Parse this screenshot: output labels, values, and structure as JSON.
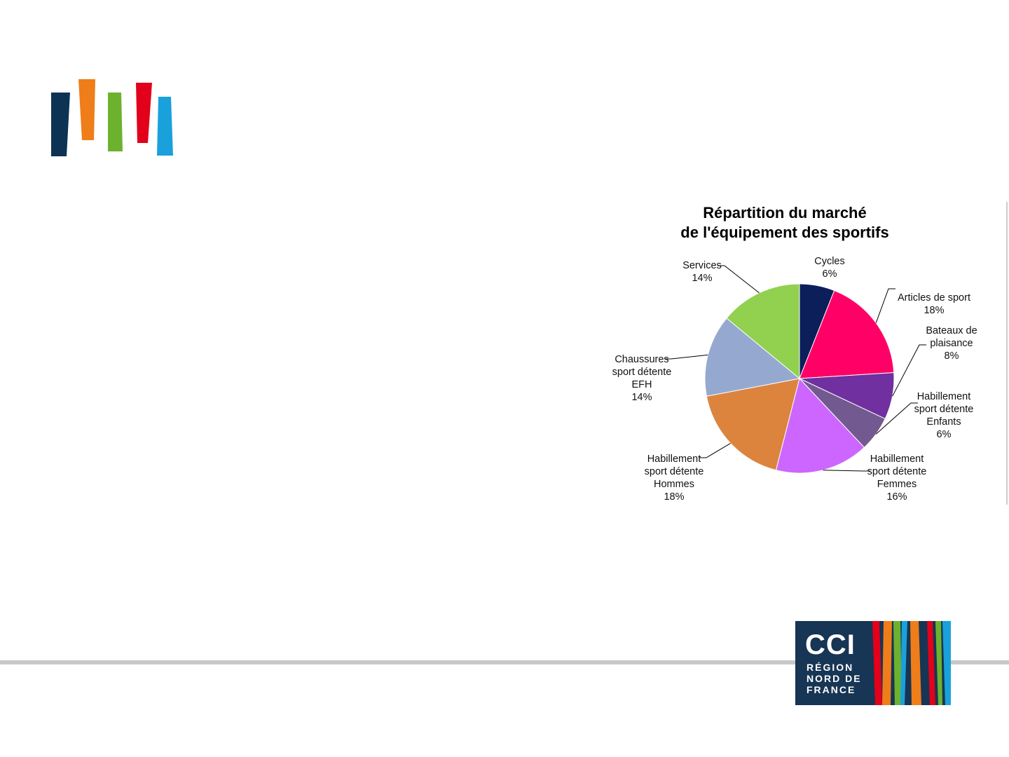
{
  "chart_data": {
    "type": "pie",
    "title": [
      "Répartition du marché",
      "de l'équipement des sportifs"
    ],
    "categories": [
      "Cycles",
      "Articles de sport",
      "Bateaux de plaisance",
      "Habillement sport détente Enfants",
      "Habillement sport détente Femmes",
      "Habillement sport détente Hommes",
      "Chaussures sport détente EFH",
      "Services"
    ],
    "values": [
      6,
      18,
      8,
      6,
      16,
      18,
      14,
      14
    ],
    "value_labels": [
      "6%",
      "18%",
      "8%",
      "6%",
      "16%",
      "18%",
      "14%",
      "14%"
    ],
    "colors": [
      "#0c1f5a",
      "#ff0066",
      "#7030a0",
      "#725a91",
      "#cc66ff",
      "#dc843e",
      "#95a9d0",
      "#92d050"
    ]
  },
  "logo": {
    "name": "CCI",
    "lines": [
      "RÉGION",
      "NORD DE",
      "FRANCE"
    ]
  }
}
